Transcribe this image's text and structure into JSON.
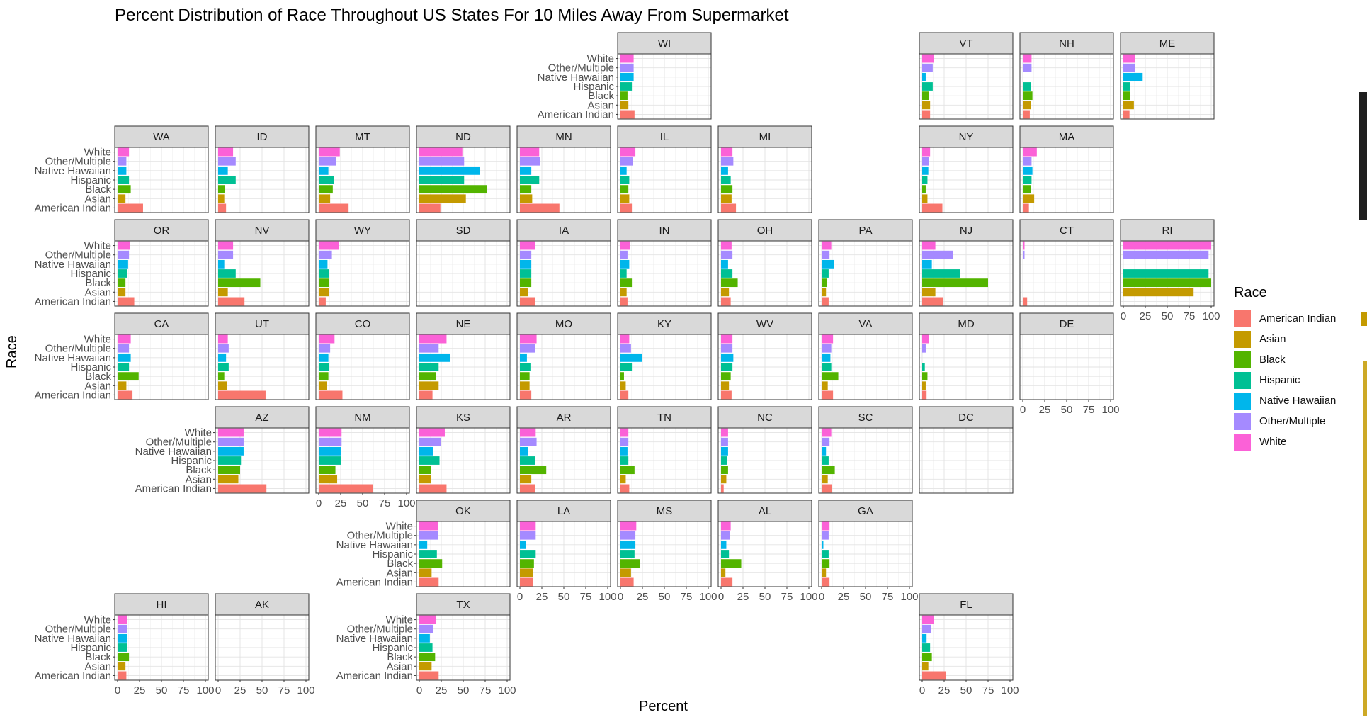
{
  "chart_data": {
    "type": "bar",
    "orientation": "horizontal",
    "title": "Percent Distribution of Race Throughout US States For 10 Miles Away From Supermarket",
    "xlabel": "Percent",
    "ylabel": "Race",
    "xlim": [
      0,
      100
    ],
    "x_ticks": [
      "0",
      "25",
      "50",
      "75",
      "100"
    ],
    "categories": [
      "White",
      "Other/Multiple",
      "Native Hawaiian",
      "Hispanic",
      "Black",
      "Asian",
      "American Indian"
    ],
    "legend": {
      "title": "Race",
      "position": "right",
      "items": [
        "American Indian",
        "Asian",
        "Black",
        "Hispanic",
        "Native Hawaiian",
        "Other/Multiple",
        "White"
      ]
    },
    "colors": {
      "American Indian": "#F8766D",
      "Asian": "#C49A00",
      "Black": "#53B400",
      "Hispanic": "#00C094",
      "Native Hawaiian": "#00B6EB",
      "Other/Multiple": "#A58AFF",
      "White": "#FB61D7"
    },
    "grid": true,
    "facets": [
      {
        "state": "WI",
        "values": [
          15,
          15,
          15,
          13,
          8,
          9,
          16
        ]
      },
      {
        "state": "VT",
        "values": [
          13,
          12,
          4,
          12,
          8,
          9,
          9
        ]
      },
      {
        "state": "NH",
        "values": [
          10,
          10,
          0,
          9,
          11,
          9,
          8
        ]
      },
      {
        "state": "ME",
        "values": [
          13,
          13,
          22,
          8,
          8,
          12,
          7
        ]
      },
      {
        "state": "WA",
        "values": [
          13,
          10,
          10,
          13,
          15,
          9,
          29
        ]
      },
      {
        "state": "ID",
        "values": [
          17,
          20,
          11,
          20,
          8,
          7,
          9
        ]
      },
      {
        "state": "MT",
        "values": [
          24,
          20,
          11,
          17,
          16,
          13,
          34
        ]
      },
      {
        "state": "ND",
        "values": [
          49,
          51,
          69,
          51,
          77,
          53,
          24
        ]
      },
      {
        "state": "MN",
        "values": [
          22,
          23,
          13,
          22,
          13,
          14,
          45
        ]
      },
      {
        "state": "IL",
        "values": [
          17,
          14,
          7,
          10,
          9,
          10,
          13
        ]
      },
      {
        "state": "MI",
        "values": [
          13,
          14,
          8,
          11,
          13,
          12,
          17
        ]
      },
      {
        "state": "NY",
        "values": [
          9,
          8,
          7,
          6,
          4,
          6,
          23
        ]
      },
      {
        "state": "MA",
        "values": [
          16,
          10,
          11,
          10,
          9,
          13,
          7
        ]
      },
      {
        "state": "OR",
        "values": [
          14,
          13,
          12,
          11,
          9,
          9,
          19
        ]
      },
      {
        "state": "NV",
        "values": [
          17,
          17,
          7,
          20,
          48,
          11,
          30
        ]
      },
      {
        "state": "WY",
        "values": [
          23,
          15,
          10,
          12,
          12,
          12,
          8
        ]
      },
      {
        "state": "SD",
        "values": [
          0,
          0,
          0,
          0,
          0,
          0,
          0
        ]
      },
      {
        "state": "IA",
        "values": [
          17,
          13,
          13,
          13,
          13,
          9,
          17
        ]
      },
      {
        "state": "IN",
        "values": [
          11,
          8,
          10,
          7,
          13,
          7,
          8
        ]
      },
      {
        "state": "OH",
        "values": [
          12,
          13,
          8,
          13,
          19,
          9,
          11
        ]
      },
      {
        "state": "PA",
        "values": [
          11,
          9,
          14,
          8,
          6,
          5,
          8
        ]
      },
      {
        "state": "NJ",
        "values": [
          15,
          35,
          11,
          43,
          75,
          15,
          24
        ]
      },
      {
        "state": "CT",
        "values": [
          2,
          2,
          0,
          0,
          0,
          0,
          5
        ]
      },
      {
        "state": "RI",
        "values": [
          100,
          97,
          0,
          97,
          100,
          80,
          0
        ]
      },
      {
        "state": "CA",
        "values": [
          15,
          13,
          15,
          13,
          24,
          10,
          17
        ]
      },
      {
        "state": "UT",
        "values": [
          11,
          12,
          9,
          12,
          7,
          10,
          54
        ]
      },
      {
        "state": "CO",
        "values": [
          18,
          13,
          11,
          12,
          11,
          9,
          27
        ]
      },
      {
        "state": "NE",
        "values": [
          31,
          22,
          35,
          22,
          19,
          22,
          15
        ]
      },
      {
        "state": "MO",
        "values": [
          19,
          17,
          8,
          12,
          11,
          11,
          13
        ]
      },
      {
        "state": "KY",
        "values": [
          10,
          12,
          25,
          13,
          4,
          6,
          9
        ]
      },
      {
        "state": "WV",
        "values": [
          13,
          13,
          14,
          13,
          11,
          9,
          12
        ]
      },
      {
        "state": "VA",
        "values": [
          13,
          11,
          10,
          11,
          19,
          7,
          13
        ]
      },
      {
        "state": "MD",
        "values": [
          8,
          4,
          0,
          3,
          6,
          4,
          5
        ]
      },
      {
        "state": "DE",
        "values": [
          0,
          0,
          0,
          0,
          0,
          0,
          0
        ]
      },
      {
        "state": "AZ",
        "values": [
          29,
          29,
          29,
          26,
          25,
          23,
          55
        ]
      },
      {
        "state": "NM",
        "values": [
          26,
          26,
          25,
          25,
          19,
          21,
          62
        ]
      },
      {
        "state": "KS",
        "values": [
          29,
          25,
          16,
          23,
          13,
          13,
          31
        ]
      },
      {
        "state": "AR",
        "values": [
          18,
          19,
          9,
          17,
          30,
          13,
          17
        ]
      },
      {
        "state": "TN",
        "values": [
          9,
          9,
          8,
          9,
          16,
          6,
          10
        ]
      },
      {
        "state": "NC",
        "values": [
          8,
          8,
          8,
          7,
          8,
          6,
          3
        ]
      },
      {
        "state": "SC",
        "values": [
          11,
          9,
          5,
          8,
          15,
          7,
          12
        ]
      },
      {
        "state": "DC",
        "values": [
          0,
          0,
          0,
          0,
          0,
          0,
          0
        ]
      },
      {
        "state": "OK",
        "values": [
          21,
          21,
          9,
          20,
          26,
          14,
          22
        ]
      },
      {
        "state": "LA",
        "values": [
          18,
          18,
          7,
          18,
          16,
          15,
          15
        ]
      },
      {
        "state": "MS",
        "values": [
          18,
          17,
          17,
          16,
          22,
          12,
          15
        ]
      },
      {
        "state": "AL",
        "values": [
          11,
          10,
          6,
          9,
          23,
          5,
          13
        ]
      },
      {
        "state": "GA",
        "values": [
          9,
          8,
          2,
          8,
          9,
          5,
          9
        ]
      },
      {
        "state": "HI",
        "values": [
          11,
          11,
          11,
          11,
          13,
          9,
          10
        ]
      },
      {
        "state": "AK",
        "values": [
          0,
          0,
          0,
          0,
          0,
          0,
          0
        ]
      },
      {
        "state": "TX",
        "values": [
          19,
          16,
          12,
          15,
          18,
          14,
          22
        ]
      },
      {
        "state": "FL",
        "values": [
          13,
          10,
          5,
          9,
          11,
          7,
          27
        ]
      }
    ]
  }
}
